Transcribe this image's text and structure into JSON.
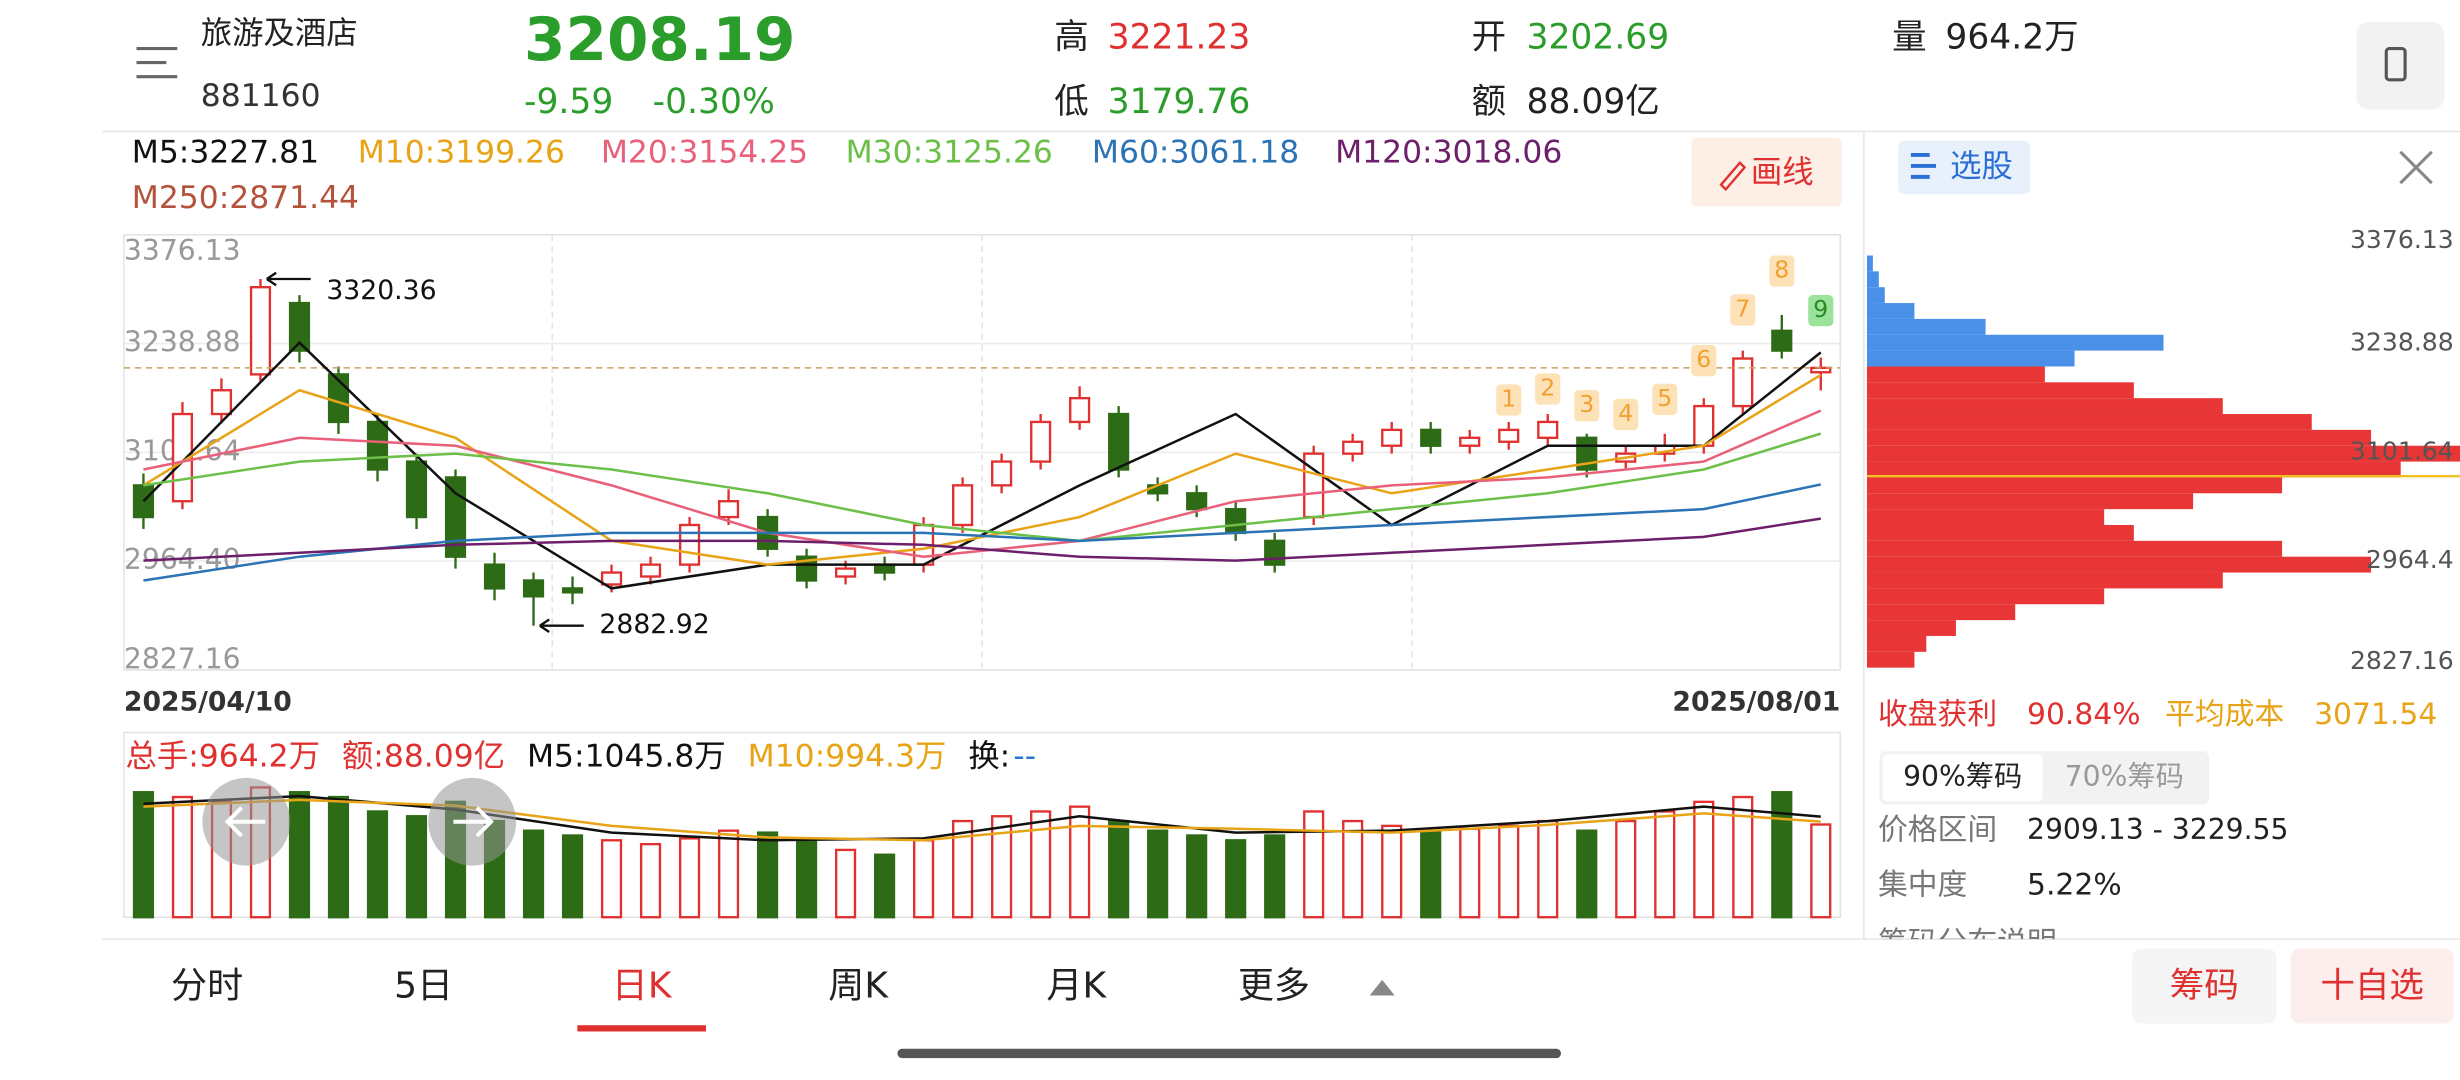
{
  "header": {
    "name": "旅游及酒店",
    "code": "881160",
    "price": "3208.19",
    "change": "-9.59",
    "pct": "-0.30%",
    "high_label": "高",
    "high": "3221.23",
    "low_label": "低",
    "low": "3179.76",
    "open_label": "开",
    "open": "3202.69",
    "amount_label": "额",
    "amount": "88.09亿",
    "volume_label": "量",
    "volume": "964.2万"
  },
  "ma_legend": [
    {
      "text": "M5:3227.81",
      "color": "#111111"
    },
    {
      "text": "M10:3199.26",
      "color": "#e8a317"
    },
    {
      "text": "M20:3154.25",
      "color": "#e8607a"
    },
    {
      "text": "M30:3125.26",
      "color": "#6cc04a"
    },
    {
      "text": "M60:3061.18",
      "color": "#2b73b5"
    },
    {
      "text": "M120:3018.06",
      "color": "#6d1f6b"
    },
    {
      "text": "M250:2871.44",
      "color": "#b5523b"
    }
  ],
  "draw_button": "画线",
  "chart_data": {
    "type": "candlestick",
    "ylim": [
      2827.16,
      3376.13
    ],
    "yticks": [
      3376.13,
      3238.88,
      3101.64,
      {
        "value": 2964.4,
        "label": "2964.40"
      },
      2827.16
    ],
    "date_start": "2025/04/10",
    "date_end": "2025/08/01",
    "up_color": "#e03030",
    "down_color": "#2e6b16",
    "candles": [
      [
        3060,
        3075,
        3005,
        3020
      ],
      [
        3040,
        3165,
        3030,
        3150
      ],
      [
        3150,
        3195,
        3140,
        3180
      ],
      [
        3200,
        3320.36,
        3190,
        3310
      ],
      [
        3290,
        3300,
        3215,
        3230
      ],
      [
        3200,
        3210,
        3125,
        3140
      ],
      [
        3140,
        3150,
        3065,
        3080
      ],
      [
        3090,
        3100,
        3005,
        3020
      ],
      [
        3070,
        3080,
        2955,
        2970
      ],
      [
        2960,
        2975,
        2915,
        2930
      ],
      [
        2940,
        2950,
        2882.92,
        2920
      ],
      [
        2930,
        2945,
        2910,
        2925
      ],
      [
        2935,
        2960,
        2925,
        2950
      ],
      [
        2945,
        2970,
        2935,
        2960
      ],
      [
        2960,
        3020,
        2950,
        3010
      ],
      [
        3020,
        3055,
        3010,
        3040
      ],
      [
        3020,
        3030,
        2970,
        2980
      ],
      [
        2970,
        2980,
        2930,
        2940
      ],
      [
        2945,
        2965,
        2935,
        2955
      ],
      [
        2960,
        2970,
        2940,
        2950
      ],
      [
        2960,
        3020,
        2950,
        3010
      ],
      [
        3010,
        3070,
        3000,
        3060
      ],
      [
        3060,
        3100,
        3050,
        3090
      ],
      [
        3090,
        3150,
        3080,
        3140
      ],
      [
        3140,
        3185,
        3130,
        3170
      ],
      [
        3150,
        3160,
        3070,
        3080
      ],
      [
        3060,
        3070,
        3040,
        3050
      ],
      [
        3050,
        3060,
        3020,
        3030
      ],
      [
        3030,
        3040,
        2990,
        3000
      ],
      [
        2990,
        3000,
        2950,
        2960
      ],
      [
        3020,
        3110,
        3010,
        3100
      ],
      [
        3100,
        3125,
        3090,
        3115
      ],
      [
        3110,
        3140,
        3100,
        3130
      ],
      [
        3130,
        3140,
        3100,
        3110
      ],
      [
        3110,
        3130,
        3100,
        3120
      ],
      [
        3115,
        3140,
        3105,
        3130
      ],
      [
        3120,
        3150,
        3110,
        3140
      ],
      [
        3120,
        3125,
        3070,
        3080
      ],
      [
        3090,
        3110,
        3080,
        3100
      ],
      [
        3100,
        3125,
        3090,
        3110
      ],
      [
        3110,
        3170,
        3100,
        3160
      ],
      [
        3160,
        3230,
        3150,
        3220
      ],
      [
        3255,
        3275,
        3220,
        3230
      ],
      [
        3202.69,
        3221.23,
        3179.76,
        3208.19
      ]
    ],
    "high_note": "3320.36",
    "low_note": "2882.92",
    "td_labels": [
      "1",
      "2",
      "3",
      "4",
      "5",
      "6",
      "7",
      "8",
      "9"
    ],
    "ma_x": [
      0,
      4,
      8,
      12,
      16,
      20,
      24,
      28,
      32,
      36,
      40,
      43
    ],
    "ma": [
      {
        "color": "#111111",
        "values": [
          3040,
          3240,
          3050,
          2930,
          2960,
          2960,
          3060,
          3150,
          3010,
          3110,
          3110,
          3227.81
        ]
      },
      {
        "color": "#e8a317",
        "values": [
          3060,
          3180,
          3120,
          2990,
          2960,
          2980,
          3020,
          3100,
          3050,
          3080,
          3110,
          3199.26
        ]
      },
      {
        "color": "#e8607a",
        "values": [
          3080,
          3120,
          3110,
          3060,
          3000,
          2970,
          2990,
          3040,
          3060,
          3070,
          3090,
          3154.25
        ]
      },
      {
        "color": "#6cc04a",
        "values": [
          3060,
          3090,
          3100,
          3080,
          3050,
          3010,
          2990,
          3010,
          3030,
          3050,
          3080,
          3125.26
        ]
      },
      {
        "color": "#2b73b5",
        "values": [
          2940,
          2970,
          2990,
          3000,
          3000,
          3000,
          2990,
          3000,
          3010,
          3020,
          3030,
          3061.18
        ]
      },
      {
        "color": "#6d1f6b",
        "values": [
          2965,
          2975,
          2985,
          2990,
          2990,
          2985,
          2970,
          2965,
          2975,
          2985,
          2995,
          3018.06
        ]
      }
    ],
    "volume": {
      "ylim": [
        0,
        1400
      ],
      "values": [
        1300,
        1250,
        1200,
        1350,
        1300,
        1250,
        1100,
        1050,
        1200,
        1000,
        900,
        850,
        800,
        760,
        820,
        900,
        880,
        800,
        700,
        650,
        800,
        1000,
        1050,
        1100,
        1150,
        1000,
        900,
        850,
        800,
        850,
        1100,
        1000,
        950,
        900,
        920,
        950,
        1000,
        900,
        1000,
        1100,
        1200,
        1250,
        1300,
        964.2
      ],
      "ma": [
        {
          "color": "#111111",
          "values": [
            1180,
            1260,
            1120,
            880,
            800,
            820,
            1050,
            880,
            900,
            1000,
            1150,
            1045.8
          ]
        },
        {
          "color": "#e8a317",
          "values": [
            1150,
            1220,
            1160,
            950,
            830,
            800,
            950,
            920,
            880,
            960,
            1080,
            994.3
          ]
        }
      ]
    },
    "chips": {
      "close": 3208.19,
      "above_color": "#4a90e8",
      "below_color": "#e83535",
      "avg_cost": 3071.54,
      "prices": [
        2840,
        2860,
        2880,
        2900,
        2920,
        2940,
        2960,
        2980,
        3000,
        3020,
        3040,
        3060,
        3080,
        3100,
        3120,
        3140,
        3160,
        3180,
        3200,
        3220,
        3240,
        3260,
        3280,
        3300,
        3320,
        3340
      ],
      "values": [
        8,
        10,
        15,
        25,
        40,
        60,
        85,
        70,
        45,
        40,
        55,
        70,
        90,
        100,
        85,
        75,
        60,
        45,
        30,
        35,
        50,
        20,
        8,
        3,
        2,
        1
      ],
      "yticks": [
        3376.13,
        3238.88,
        3101.64,
        2964.4,
        2827.16
      ]
    }
  },
  "volume_legend": [
    {
      "text": "总手:964.2万",
      "color": "#e03030"
    },
    {
      "text": "额:88.09亿",
      "color": "#e03030"
    },
    {
      "text": "M5:1045.8万",
      "color": "#111111"
    },
    {
      "text": "M10:994.3万",
      "color": "#e8a317"
    },
    {
      "text": "换:",
      "color": "#111111"
    },
    {
      "text": "--",
      "color": "#2b73d6"
    }
  ],
  "side": {
    "select": "选股",
    "profit_label": "收盘获利",
    "profit": "90.84%",
    "cost_label": "平均成本",
    "cost": "3071.54",
    "tab90": "90%筹码",
    "tab70": "70%筹码",
    "range_label": "价格区间",
    "range": "2909.13 - 3229.55",
    "conc_label": "集中度",
    "conc": "5.22%",
    "explain": "筹码分布说明"
  },
  "tabs": [
    "分时",
    "5日",
    "日K",
    "周K",
    "月K",
    "更多"
  ],
  "buttons": [
    "筹码",
    "十自选"
  ]
}
